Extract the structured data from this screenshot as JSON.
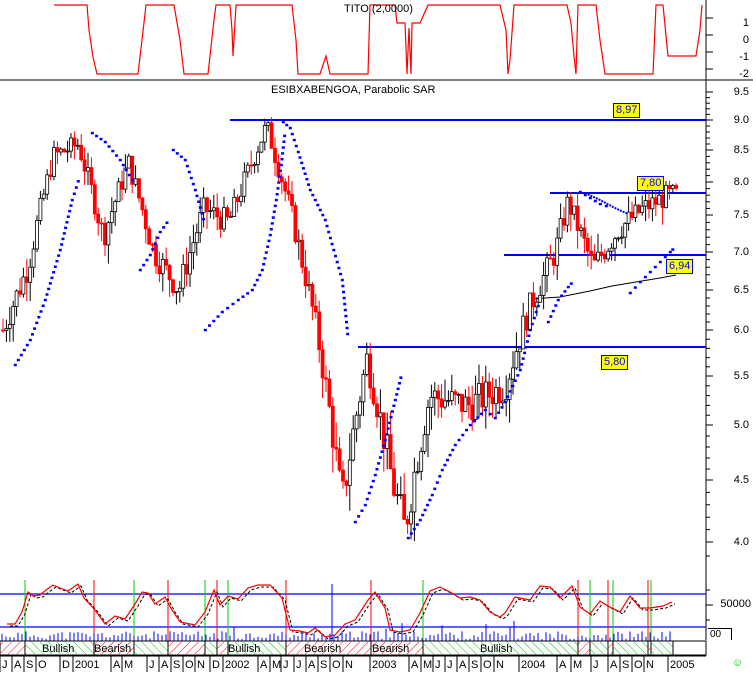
{
  "chart_data": [
    {
      "panel": "indicator-top",
      "type": "line",
      "title": "TITO (2,0000)",
      "ylim": [
        -2,
        2
      ],
      "y_ticks": [
        "1",
        "0",
        "-1",
        "-2"
      ],
      "series": [
        {
          "name": "TITO",
          "color": "#ff0000"
        }
      ],
      "description": "Step-like oscillator switching between +2 and -2"
    },
    {
      "panel": "price",
      "type": "candlestick",
      "title": "ESIBXABENGOA, Parabolic SAR",
      "ylabel": "",
      "ylim": [
        3.8,
        9.6
      ],
      "y_ticks": [
        "9.5",
        "9.0",
        "8.5",
        "8.0",
        "7.5",
        "7.0",
        "6.5",
        "6.0",
        "5.5",
        "5.0",
        "4.5",
        "4.0"
      ],
      "x_range": [
        "2000-07",
        "2005-01"
      ],
      "overlays": [
        "Parabolic SAR (blue dots)",
        "Moving average (black line)"
      ],
      "horizontal_levels": [
        {
          "label": "8,97",
          "value": 8.97
        },
        {
          "label": "7,80",
          "value": 7.8
        },
        {
          "label": "6,94",
          "value": 6.94
        },
        {
          "label": "5,80",
          "value": 5.8
        }
      ],
      "approx_path": [
        {
          "date": "2000-07",
          "close": 6.0
        },
        {
          "date": "2000-09",
          "close": 6.8
        },
        {
          "date": "2000-11",
          "close": 8.4
        },
        {
          "date": "2001-01",
          "close": 8.6
        },
        {
          "date": "2001-03",
          "close": 7.2
        },
        {
          "date": "2001-05",
          "close": 8.3
        },
        {
          "date": "2001-07",
          "close": 7.0
        },
        {
          "date": "2001-09",
          "close": 6.5
        },
        {
          "date": "2001-11",
          "close": 7.6
        },
        {
          "date": "2002-01",
          "close": 7.4
        },
        {
          "date": "2002-04",
          "close": 8.9
        },
        {
          "date": "2002-06",
          "close": 7.5
        },
        {
          "date": "2002-08",
          "close": 6.0
        },
        {
          "date": "2002-10",
          "close": 4.3
        },
        {
          "date": "2002-12",
          "close": 5.7
        },
        {
          "date": "2003-02",
          "close": 4.5
        },
        {
          "date": "2003-03",
          "close": 4.1
        },
        {
          "date": "2003-05",
          "close": 5.3
        },
        {
          "date": "2003-08",
          "close": 5.2
        },
        {
          "date": "2003-11",
          "close": 5.4
        },
        {
          "date": "2004-01",
          "close": 6.3
        },
        {
          "date": "2004-03",
          "close": 7.0
        },
        {
          "date": "2004-04",
          "close": 7.7
        },
        {
          "date": "2004-06",
          "close": 6.8
        },
        {
          "date": "2004-08",
          "close": 7.3
        },
        {
          "date": "2004-10",
          "close": 7.6
        },
        {
          "date": "2004-12",
          "close": 7.8
        }
      ]
    },
    {
      "panel": "indicator-bottom",
      "type": "line",
      "series": [
        {
          "name": "Oscillator",
          "color": "#ff0000"
        },
        {
          "name": "Signal",
          "color": "#000000",
          "style": "dashed"
        },
        {
          "name": "Volume",
          "color": "#0000ff",
          "type": "bar"
        }
      ],
      "y_ticks": [
        "50000"
      ],
      "levels": [
        "upper band (blue)",
        "lower band (blue)"
      ],
      "regime_labels": [
        "Bullish",
        "Bearish",
        "Bullish",
        "Bearish",
        "Bearish",
        "Bullish"
      ]
    }
  ],
  "top_panel": {
    "title": "TITO (2,0000)",
    "ticks": [
      "1",
      "0",
      "-1",
      "-2"
    ]
  },
  "main_panel": {
    "title": "ESIBXABENGOA, Parabolic SAR",
    "ticks": [
      "9.5",
      "9.0",
      "8.5",
      "8.0",
      "7.5",
      "7.0",
      "6.5",
      "6.0",
      "5.5",
      "5.0",
      "4.5",
      "4.0"
    ],
    "levels": [
      "8,97",
      "7,80",
      "6,94",
      "5,80"
    ]
  },
  "bottom_panel": {
    "tick": "50000",
    "small_box": "00",
    "regimes": [
      "Bullish",
      "Bearish",
      "Bullish",
      "Bearish",
      "Bearish",
      "Bullish"
    ]
  },
  "x_axis": {
    "labels": [
      "J",
      "A",
      "S",
      "O",
      "D",
      "2001",
      "A",
      "M",
      "J",
      "A",
      "S",
      "O",
      "N",
      "D",
      "2002",
      "A",
      "M",
      "J",
      "J",
      "A",
      "S",
      "O",
      "N",
      "2003",
      "A",
      "M",
      "J",
      "J",
      "A",
      "S",
      "O",
      "N",
      "2004",
      "A",
      "M",
      "J",
      "A",
      "S",
      "O",
      "N",
      "2005"
    ]
  },
  "colors": {
    "up": "#000000",
    "down": "#ff0000",
    "sar": "#0000ff",
    "level": "#0000ff",
    "tag_bg": "#ffff00",
    "bull": "#00cc00",
    "bear": "#ff0000"
  }
}
